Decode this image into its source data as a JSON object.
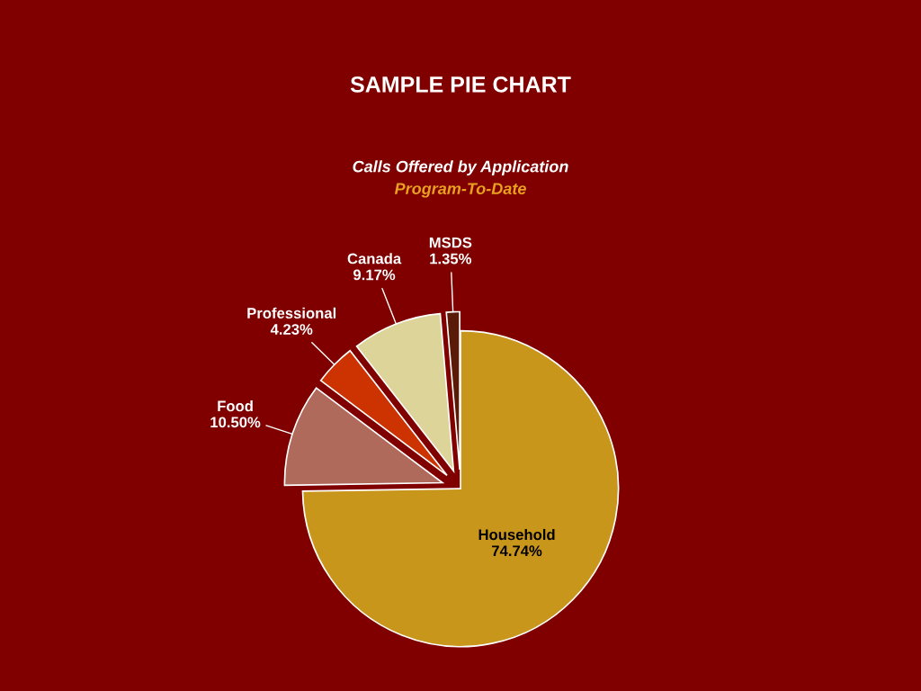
{
  "chart_data": {
    "type": "pie",
    "title": "SAMPLE PIE CHART",
    "subtitle": "Calls Offered by Application",
    "annotations": [
      "Program-To-Date"
    ],
    "categories": [
      "Household",
      "Food",
      "Professional",
      "Canada",
      "MSDS"
    ],
    "values": [
      74.74,
      10.5,
      4.23,
      9.17,
      1.35
    ],
    "colors": [
      "#c9961c",
      "#b06a5c",
      "#cc3300",
      "#ddd49a",
      "#5a1a08"
    ],
    "value_labels": [
      "74.74%",
      "10.50%",
      "4.23%",
      "9.17%",
      "1.35%"
    ]
  }
}
